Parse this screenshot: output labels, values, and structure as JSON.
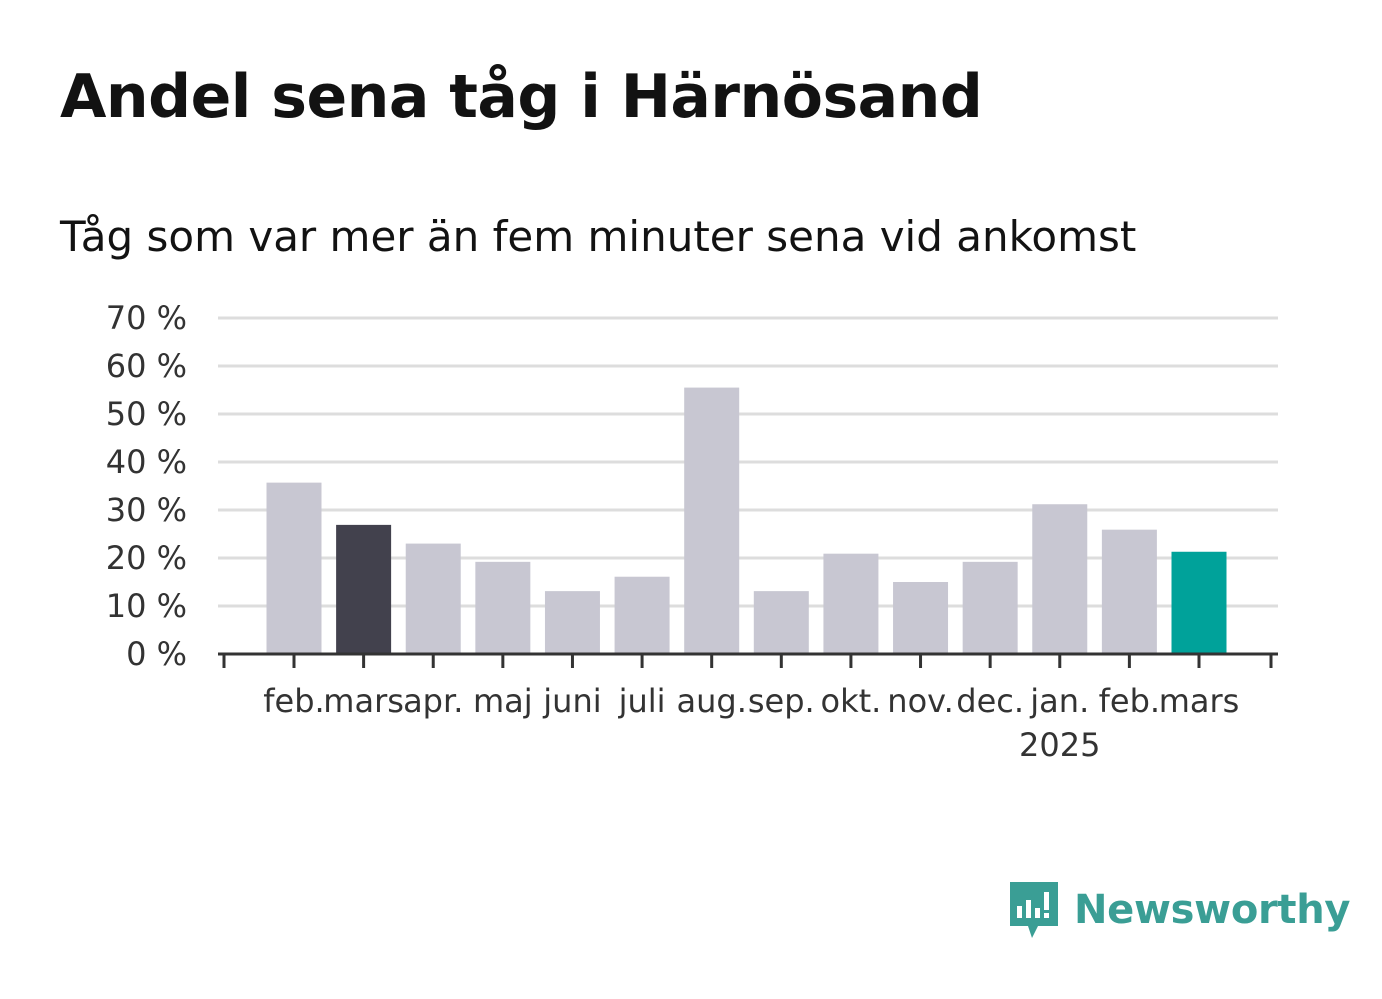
{
  "header": {
    "title": "Andel sena tåg i Härnösand",
    "subtitle": "Tåg som var mer än fem minuter sena vid ankomst"
  },
  "logo": {
    "text": "Newsworthy",
    "icon": "newsworthy-chart-bubble-icon"
  },
  "colors": {
    "bar_default": "#c8c7d2",
    "bar_previous": "#42414d",
    "bar_current": "#00a29a",
    "grid": "#dddddd",
    "axis": "#333333",
    "logo": "#3a9e95"
  },
  "chart_data": {
    "type": "bar",
    "categories": [
      "feb.",
      "mars",
      "apr.",
      "maj",
      "juni",
      "juli",
      "aug.",
      "sep.",
      "okt.",
      "nov.",
      "dec.",
      "jan.",
      "feb.",
      "mars"
    ],
    "category_sublabels": [
      "",
      "",
      "",
      "",
      "",
      "",
      "",
      "",
      "",
      "",
      "",
      "2025",
      "",
      ""
    ],
    "values": [
      35.7,
      26.9,
      23.0,
      19.2,
      13.1,
      16.1,
      55.5,
      13.1,
      20.9,
      15.0,
      19.2,
      31.2,
      25.9,
      21.3
    ],
    "highlight": [
      "default",
      "previous",
      "default",
      "default",
      "default",
      "default",
      "default",
      "default",
      "default",
      "default",
      "default",
      "default",
      "default",
      "current"
    ],
    "ylim": [
      0,
      70
    ],
    "yticks": [
      0,
      10,
      20,
      30,
      40,
      50,
      60,
      70
    ],
    "ytick_labels": [
      "0 %",
      "10 %",
      "20 %",
      "30 %",
      "40 %",
      "50 %",
      "60 %",
      "70 %"
    ],
    "xlabel": "",
    "ylabel": "",
    "grid": true
  }
}
